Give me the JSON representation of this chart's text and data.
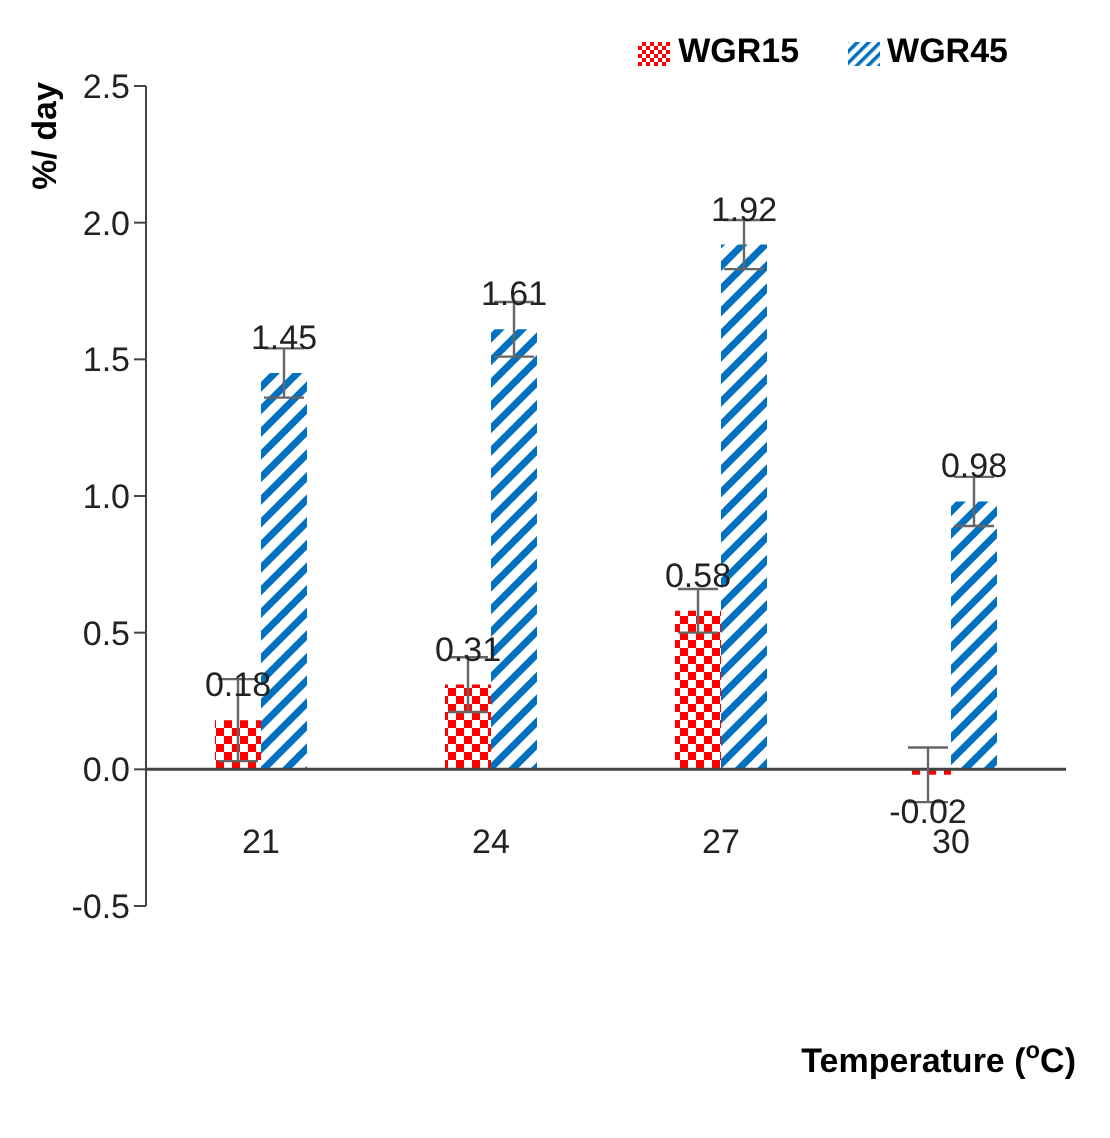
{
  "chart_data": {
    "type": "bar",
    "categories": [
      "21",
      "24",
      "27",
      "30"
    ],
    "series": [
      {
        "name": "WGR15",
        "color": "#ff0000",
        "values": [
          0.18,
          0.31,
          0.58,
          -0.02
        ],
        "errors": [
          0.15,
          0.1,
          0.08,
          0.1
        ]
      },
      {
        "name": "WGR45",
        "color": "#0070c0",
        "values": [
          1.45,
          1.61,
          1.92,
          0.98
        ],
        "errors": [
          0.09,
          0.1,
          0.09,
          0.09
        ]
      }
    ],
    "ylabel": "%/ day",
    "xlabel": "Temperature ($^{o}$C)",
    "ylim": [
      -0.5,
      2.5
    ],
    "yticks": [
      -0.5,
      {
        "value": 0,
        "label": "0.0"
      },
      0.5,
      {
        "value": 1,
        "label": "1.0"
      },
      1.5,
      {
        "value": 2,
        "label": "2.0"
      },
      2.5
    ],
    "data_labels": true,
    "legend": "top right",
    "grid": false
  }
}
